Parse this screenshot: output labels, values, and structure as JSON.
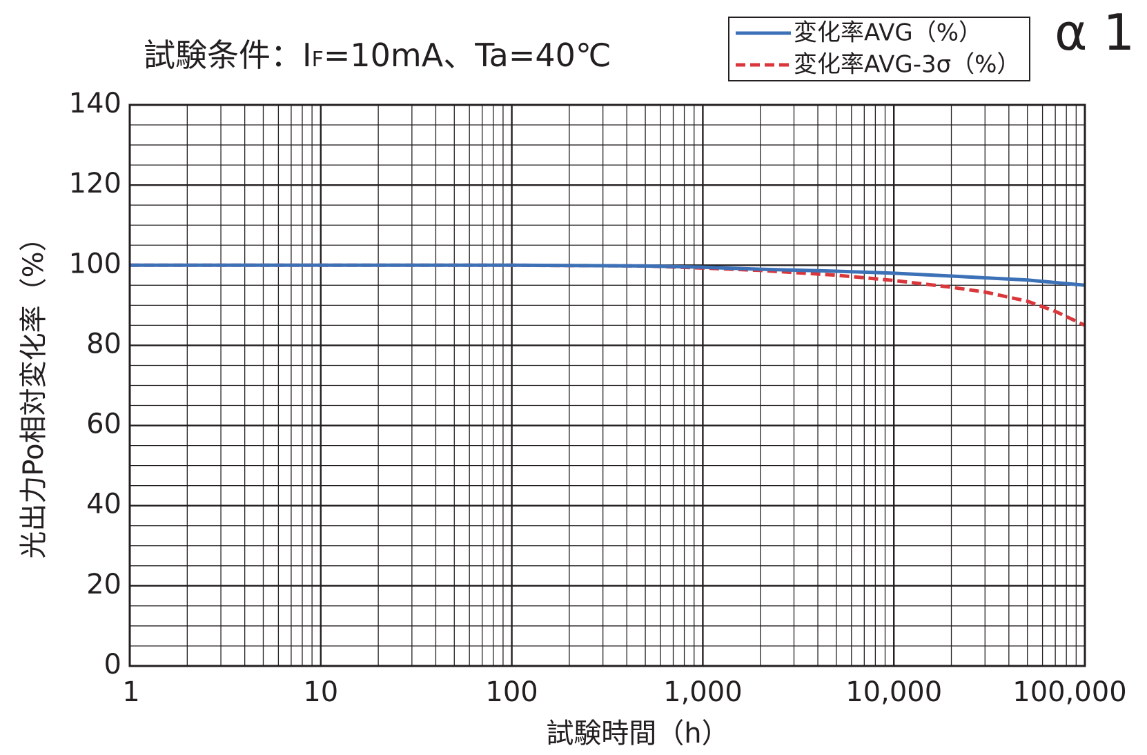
{
  "chart_data": {
    "type": "line",
    "title_prefix": "試験条件：I",
    "title_sub": "F",
    "title_suffix": "=10mA、Ta=40℃",
    "corner_label": "α 1",
    "xlabel": "試験時間（h）",
    "ylabel": "光出力Po相対変化率（%）",
    "x_scale": "log",
    "xlim": [
      1,
      100000
    ],
    "ylim": [
      0,
      140
    ],
    "x_ticks": [
      {
        "value": 1,
        "label": "1"
      },
      {
        "value": 10,
        "label": "10"
      },
      {
        "value": 100,
        "label": "100"
      },
      {
        "value": 1000,
        "label": "1,000"
      },
      {
        "value": 10000,
        "label": "10,000"
      },
      {
        "value": 100000,
        "label": "100,000"
      }
    ],
    "y_ticks": [
      {
        "value": 0,
        "label": "0"
      },
      {
        "value": 20,
        "label": "20"
      },
      {
        "value": 40,
        "label": "40"
      },
      {
        "value": 60,
        "label": "60"
      },
      {
        "value": 80,
        "label": "80"
      },
      {
        "value": 100,
        "label": "100"
      },
      {
        "value": 120,
        "label": "120"
      },
      {
        "value": 140,
        "label": "140"
      }
    ],
    "grid": true,
    "legend_position": "top-right",
    "series": [
      {
        "name": "変化率AVG（%）",
        "color": "#3c71b7",
        "style": "solid",
        "x": [
          1,
          10,
          100,
          500,
          1000,
          2000,
          5000,
          10000,
          20000,
          50000,
          100000
        ],
        "y": [
          100,
          100,
          100,
          99.8,
          99.5,
          99.0,
          98.5,
          98.0,
          97.3,
          96.3,
          95.0
        ]
      },
      {
        "name": "変化率AVG-3σ（%）",
        "color": "#d9373b",
        "style": "dashed",
        "x": [
          1,
          10,
          100,
          500,
          1000,
          2000,
          5000,
          10000,
          20000,
          30000,
          50000,
          70000,
          100000
        ],
        "y": [
          100,
          100,
          100,
          99.8,
          99.3,
          98.7,
          97.5,
          96.2,
          94.5,
          93.3,
          91.0,
          88.5,
          85.0
        ]
      }
    ]
  }
}
